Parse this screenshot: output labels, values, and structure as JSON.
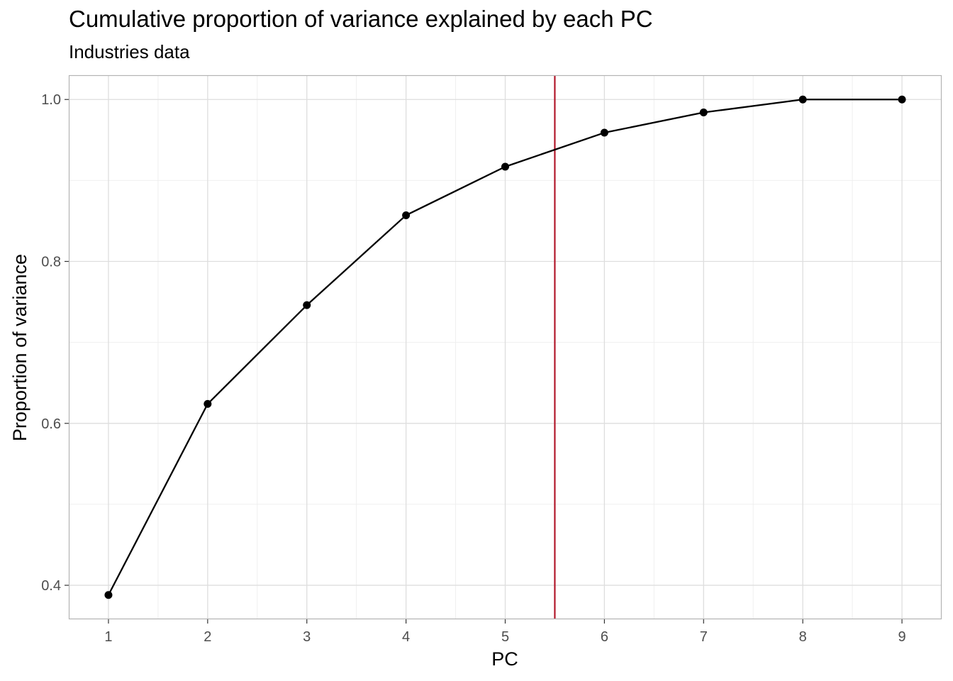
{
  "title": "Cumulative proportion of variance explained by each PC",
  "subtitle": "Industries data",
  "chart_data": {
    "type": "line",
    "xlabel": "PC",
    "ylabel": "Proportion of variance",
    "x": [
      1,
      2,
      3,
      4,
      5,
      6,
      7,
      8,
      9
    ],
    "values": [
      0.388,
      0.624,
      0.746,
      0.857,
      0.917,
      0.959,
      0.984,
      1.0,
      1.0
    ],
    "xlim": [
      0.6,
      9.4
    ],
    "ylim": [
      0.358,
      1.03
    ],
    "x_ticks": [
      "1",
      "2",
      "3",
      "4",
      "5",
      "6",
      "7",
      "8",
      "9"
    ],
    "y_ticks": [
      "0.4",
      "0.6",
      "0.8",
      "1.0"
    ],
    "vline": 5.5,
    "grid": true,
    "points": true,
    "colors": {
      "line": "#000000",
      "vline": "#b2182b",
      "grid_major": "#dedede",
      "grid_minor": "#efefef",
      "panel_border": "#b3b3b3"
    }
  }
}
